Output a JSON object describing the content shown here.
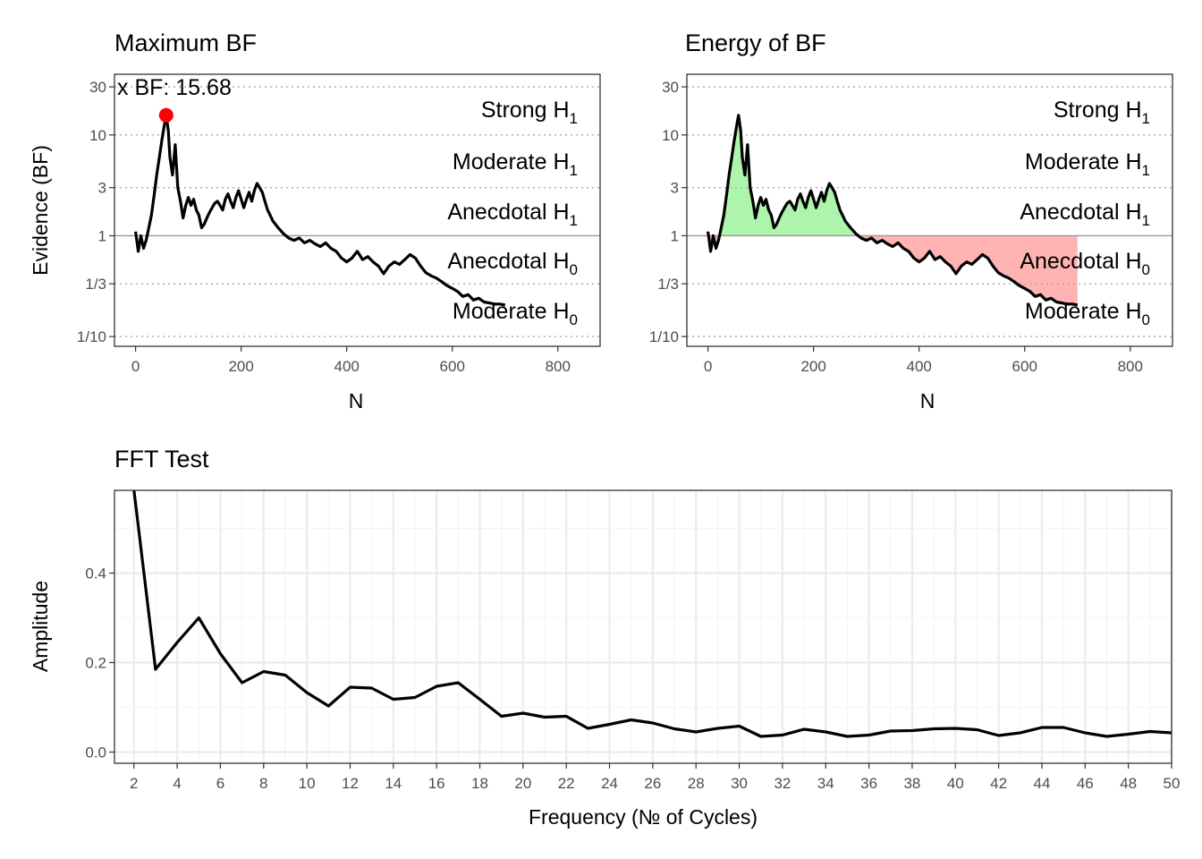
{
  "figure": {
    "background": "#ffffff",
    "ink": "#000000",
    "tick_color": "#4d4d4d",
    "grid_color": "#ebebeb"
  },
  "chart_data": [
    {
      "id": "max_bf",
      "type": "line",
      "title": "Maximum BF",
      "xlabel": "N",
      "ylabel": "Evidence (BF)",
      "xlim": [
        -40,
        880
      ],
      "ylim": [
        0.08,
        40
      ],
      "log_y": true,
      "x_ticks": [
        0,
        200,
        400,
        600,
        800
      ],
      "x_tick_labels": [
        "0",
        "200",
        "400",
        "600",
        "800"
      ],
      "y_ticks": [
        0.1,
        0.3333,
        1,
        3,
        10,
        30
      ],
      "y_tick_labels": [
        "1/10",
        "1/3",
        "1",
        "3",
        "10",
        "30"
      ],
      "reference_line": 1,
      "dotted_thresholds": [
        0.1,
        0.3333,
        3,
        10,
        30
      ],
      "bands": [
        {
          "main": "Strong H",
          "sub": "1",
          "y": 18
        },
        {
          "main": "Moderate H",
          "sub": "1",
          "y": 5.5
        },
        {
          "main": "Anecdotal H",
          "sub": "1",
          "y": 1.75
        },
        {
          "main": "Anecdotal H",
          "sub": "0",
          "y": 0.57
        },
        {
          "main": "Moderate H",
          "sub": "0",
          "y": 0.182
        }
      ],
      "series": [
        {
          "x": [
            0,
            5,
            10,
            15,
            20,
            25,
            30,
            35,
            40,
            45,
            50,
            55,
            58,
            62,
            65,
            70,
            75,
            80,
            85,
            90,
            95,
            100,
            105,
            110,
            115,
            120,
            125,
            130,
            135,
            140,
            145,
            150,
            155,
            160,
            165,
            170,
            175,
            180,
            185,
            190,
            195,
            200,
            205,
            210,
            215,
            220,
            225,
            230,
            235,
            240,
            245,
            250,
            255,
            260,
            270,
            280,
            290,
            300,
            310,
            320,
            330,
            340,
            350,
            360,
            370,
            380,
            390,
            400,
            410,
            420,
            430,
            440,
            450,
            460,
            470,
            480,
            490,
            500,
            510,
            520,
            530,
            540,
            550,
            560,
            570,
            580,
            590,
            600,
            610,
            620,
            630,
            640,
            650,
            660,
            670,
            680,
            690,
            700
          ],
          "y": [
            1.1,
            0.7,
            1.0,
            0.75,
            0.9,
            1.2,
            1.6,
            2.5,
            4.0,
            6.0,
            9.0,
            13.0,
            15.68,
            11.0,
            6.0,
            4.0,
            8.0,
            3.0,
            2.2,
            1.5,
            2.0,
            2.4,
            2.0,
            2.3,
            1.8,
            1.6,
            1.2,
            1.3,
            1.5,
            1.7,
            1.9,
            2.1,
            2.2,
            2.0,
            1.8,
            2.3,
            2.6,
            2.2,
            1.9,
            2.4,
            2.8,
            2.3,
            1.9,
            2.3,
            2.7,
            2.2,
            2.8,
            3.3,
            3.0,
            2.7,
            2.2,
            1.8,
            1.6,
            1.4,
            1.2,
            1.05,
            0.95,
            0.9,
            0.95,
            0.85,
            0.9,
            0.83,
            0.78,
            0.85,
            0.75,
            0.7,
            0.6,
            0.55,
            0.6,
            0.7,
            0.58,
            0.62,
            0.55,
            0.5,
            0.42,
            0.5,
            0.55,
            0.52,
            0.58,
            0.65,
            0.6,
            0.5,
            0.43,
            0.4,
            0.38,
            0.35,
            0.32,
            0.3,
            0.28,
            0.25,
            0.26,
            0.23,
            0.24,
            0.22,
            0.215,
            0.21,
            0.21,
            0.205
          ],
          "color": "#000000"
        }
      ],
      "max_point": {
        "x": 58,
        "y": 15.68,
        "color": "#ff0000"
      },
      "annotation": "x BF: 15.68"
    },
    {
      "id": "energy_bf",
      "type": "area",
      "title": "Energy of BF",
      "xlabel": "N",
      "ylabel": "",
      "xlim": [
        -40,
        880
      ],
      "ylim": [
        0.08,
        40
      ],
      "log_y": true,
      "x_ticks": [
        0,
        200,
        400,
        600,
        800
      ],
      "x_tick_labels": [
        "0",
        "200",
        "400",
        "600",
        "800"
      ],
      "y_ticks": [
        0.1,
        0.3333,
        1,
        3,
        10,
        30
      ],
      "y_tick_labels": [
        "1/10",
        "1/3",
        "1",
        "3",
        "10",
        "30"
      ],
      "reference_line": 1,
      "dotted_thresholds": [
        0.1,
        0.3333,
        3,
        10,
        30
      ],
      "bands": [
        {
          "main": "Strong H",
          "sub": "1",
          "y": 18
        },
        {
          "main": "Moderate H",
          "sub": "1",
          "y": 5.5
        },
        {
          "main": "Anecdotal H",
          "sub": "1",
          "y": 1.75
        },
        {
          "main": "Anecdotal H",
          "sub": "0",
          "y": 0.57
        },
        {
          "main": "Moderate H",
          "sub": "0",
          "y": 0.182
        }
      ],
      "fill_above_color": "#adf5ad",
      "fill_below_color": "#ffb3b3",
      "fill_cap_x": 330,
      "series_ref": "max_bf",
      "line_color": "#000000"
    },
    {
      "id": "fft",
      "type": "line",
      "title": "FFT Test",
      "xlabel": "Frequency (№ of Cycles)",
      "ylabel": "Amplitude",
      "xlim": [
        1.1,
        50
      ],
      "ylim": [
        -0.025,
        0.585
      ],
      "x_ticks": [
        2,
        4,
        6,
        8,
        10,
        12,
        14,
        16,
        18,
        20,
        22,
        24,
        26,
        28,
        30,
        32,
        34,
        36,
        38,
        40,
        42,
        44,
        46,
        48,
        50
      ],
      "x_tick_labels": [
        "2",
        "4",
        "6",
        "8",
        "10",
        "12",
        "14",
        "16",
        "18",
        "20",
        "22",
        "24",
        "26",
        "28",
        "30",
        "32",
        "34",
        "36",
        "38",
        "40",
        "42",
        "44",
        "46",
        "48",
        "50"
      ],
      "y_ticks": [
        0.0,
        0.2,
        0.4
      ],
      "y_tick_labels": [
        "0.0",
        "0.2",
        "0.4"
      ],
      "series": [
        {
          "x": [
            2,
            3,
            4,
            5,
            6,
            7,
            8,
            9,
            10,
            11,
            12,
            13,
            14,
            15,
            16,
            17,
            18,
            19,
            20,
            21,
            22,
            23,
            24,
            25,
            26,
            27,
            28,
            29,
            30,
            31,
            32,
            33,
            34,
            35,
            36,
            37,
            38,
            39,
            40,
            41,
            42,
            43,
            44,
            45,
            46,
            47,
            48,
            49,
            50
          ],
          "y": [
            0.585,
            0.185,
            0.245,
            0.3,
            0.22,
            0.155,
            0.18,
            0.172,
            0.133,
            0.103,
            0.145,
            0.143,
            0.118,
            0.122,
            0.147,
            0.155,
            0.118,
            0.08,
            0.087,
            0.078,
            0.08,
            0.053,
            0.062,
            0.072,
            0.065,
            0.052,
            0.045,
            0.053,
            0.058,
            0.035,
            0.038,
            0.051,
            0.045,
            0.035,
            0.038,
            0.047,
            0.048,
            0.052,
            0.053,
            0.05,
            0.037,
            0.043,
            0.055,
            0.055,
            0.043,
            0.035,
            0.04,
            0.046,
            0.043
          ],
          "color": "#000000"
        }
      ]
    }
  ]
}
